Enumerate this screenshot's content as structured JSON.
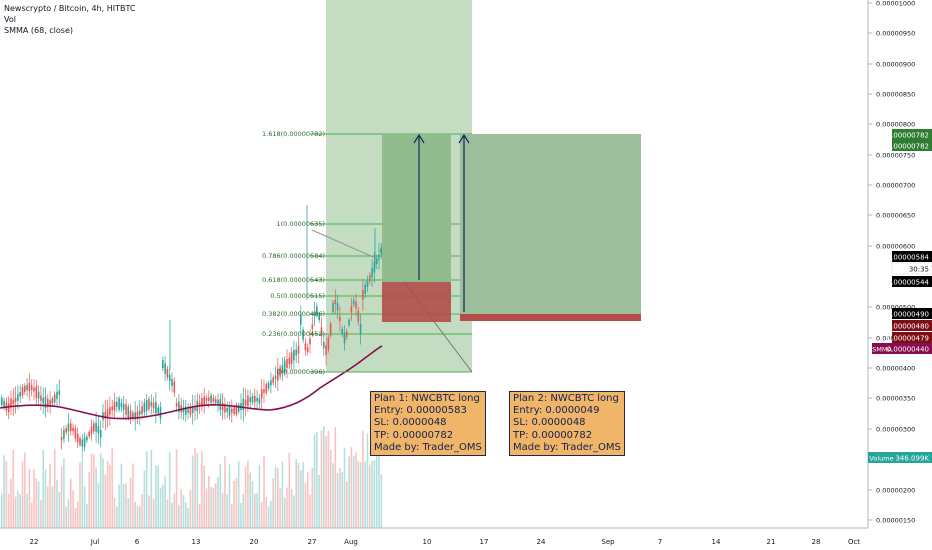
{
  "legend": {
    "symbol": "Newscrypto / Bitcoin, 4h, HITBTC",
    "vol": "Vol",
    "smma": "SMMA (68, close)"
  },
  "price_axis": {
    "ticks": [
      "0.00001000",
      "0.00000950",
      "0.00000900",
      "0.00000850",
      "0.00000800",
      "0.00000750",
      "0.00000700",
      "0.00000650",
      "0.00000600",
      "0.00000500",
      "0.00000450",
      "0.00000400",
      "0.00000350",
      "0.00000300",
      "0.00000250",
      "0.00000200",
      "0.00000150"
    ],
    "badges": {
      "tp1": "0.00000782",
      "tp2": "0.00000782",
      "last": "0.00000584",
      "countdown": "30:35",
      "fib": "0.00000544",
      "entry2": "0.00000490",
      "sl1": "0.00000480",
      "sl2": "0.00000479",
      "smma_tag": "SMMA",
      "smma_value": "0.00000440",
      "volume_tag": "Volume",
      "volume_value": "346.099K"
    },
    "colors": {
      "tp": "#2e7d32",
      "last": "#000000",
      "stop": "#7b0f14",
      "smma": "#880e4f",
      "volume": "#26a69a",
      "axis_text": "#131722"
    }
  },
  "time_axis": [
    "22",
    "Jul",
    "6",
    "13",
    "20",
    "27",
    "Aug",
    "10",
    "17",
    "24",
    "Sep",
    "7",
    "14",
    "21",
    "28",
    "Oct"
  ],
  "fib_levels": [
    {
      "label": "1.618(0.00000782)"
    },
    {
      "label": "1(0.00000635)"
    },
    {
      "label": "0.786(0.00000584)"
    },
    {
      "label": "0.618(0.00000543)"
    },
    {
      "label": "0.5(0.00000515)"
    },
    {
      "label": "0.382(0.00000486)"
    },
    {
      "label": "0.236(0.00000452)"
    },
    {
      "label": "0(0.00000396)"
    }
  ],
  "plans": [
    {
      "lines": [
        "Plan 1: NWCBTC long",
        "Entry: 0.00000583",
        "SL: 0.0000048",
        "TP: 0.00000782",
        "Made by: Trader_OMS"
      ]
    },
    {
      "lines": [
        "Plan 2: NWCBTC long",
        "Entry: 0.0000049",
        "SL: 0.0000048",
        "TP: 0.00000782",
        "Made by: Trader_OMS"
      ]
    }
  ],
  "colors": {
    "up": "#26a69a",
    "down": "#ef5350",
    "smma_line": "#880e4f",
    "profit_zone": "#8fb98b",
    "loss_zone": "#b34d4a",
    "fib_line": "#4caf50",
    "note_bg": "#f1b56a"
  }
}
